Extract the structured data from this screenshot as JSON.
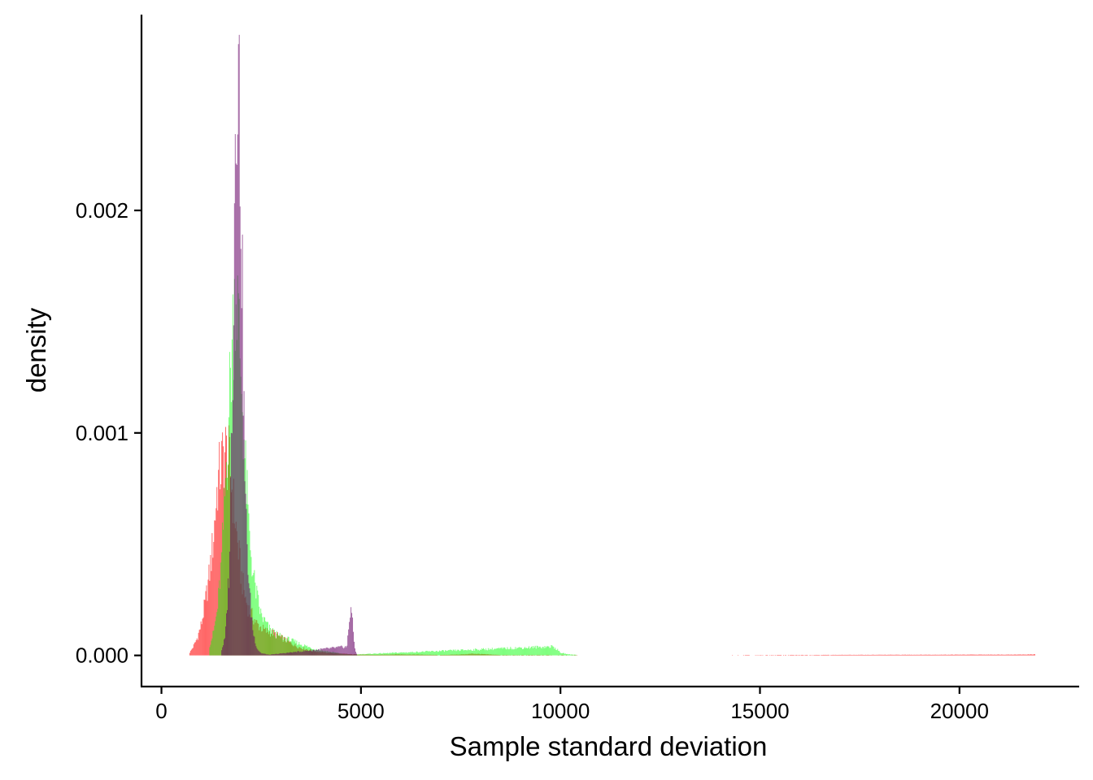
{
  "chart_data": {
    "type": "histogram",
    "title": "",
    "xlabel": "Sample standard deviation",
    "ylabel": "density",
    "xlim": [
      -500,
      23000
    ],
    "ylim": [
      -0.00014,
      0.00288
    ],
    "x_ticks": [
      0,
      5000,
      10000,
      15000,
      20000
    ],
    "x_tick_labels": [
      "0",
      "5000",
      "10000",
      "15000",
      "20000"
    ],
    "y_ticks": [
      0,
      0.001,
      0.002
    ],
    "y_tick_labels": [
      "0.000",
      "0.001",
      "0.002"
    ],
    "grid": false,
    "legend": "none",
    "bin_width": 20,
    "series": [
      {
        "color": "#ff0000",
        "opacity": 0.6,
        "points": [
          [
            700,
            1e-05
          ],
          [
            800,
            4e-05
          ],
          [
            900,
            8e-05
          ],
          [
            1000,
            0.00014
          ],
          [
            1100,
            0.00024
          ],
          [
            1200,
            0.00036
          ],
          [
            1300,
            0.00052
          ],
          [
            1400,
            0.00076
          ],
          [
            1500,
            0.00086
          ],
          [
            1600,
            0.00092
          ],
          [
            1700,
            0.00086
          ],
          [
            1800,
            0.0007
          ],
          [
            1900,
            0.00052
          ],
          [
            2000,
            0.00036
          ],
          [
            2100,
            0.00026
          ],
          [
            2200,
            0.0002
          ],
          [
            2400,
            0.00014
          ],
          [
            2600,
            0.00011
          ],
          [
            2800,
            0.0001
          ],
          [
            3000,
            8e-05
          ],
          [
            3200,
            6e-05
          ],
          [
            3400,
            4e-05
          ],
          [
            3600,
            3e-05
          ],
          [
            3800,
            2e-05
          ],
          [
            4000,
            1.5e-05
          ],
          [
            4300,
            1e-05
          ],
          [
            4700,
            6e-06
          ],
          [
            5000,
            4e-06
          ],
          [
            5400,
            3e-06
          ],
          [
            5900,
            5e-06
          ],
          [
            6400,
            4e-06
          ],
          [
            7000,
            2e-06
          ],
          [
            7600,
            5e-06
          ],
          [
            7800,
            8e-06
          ],
          [
            8500,
            2e-06
          ],
          [
            10000,
            2e-06
          ],
          [
            12000,
            1e-06
          ],
          [
            21600,
            4e-06
          ],
          [
            21900,
            5e-06
          ]
        ]
      },
      {
        "color": "#00ff00",
        "opacity": 0.5,
        "points": [
          [
            1200,
            4e-05
          ],
          [
            1300,
            0.0001
          ],
          [
            1400,
            0.0002
          ],
          [
            1500,
            0.0004
          ],
          [
            1600,
            0.00075
          ],
          [
            1700,
            0.00115
          ],
          [
            1800,
            0.0015
          ],
          [
            1850,
            0.00168
          ],
          [
            1900,
            0.0016
          ],
          [
            2000,
            0.00125
          ],
          [
            2100,
            0.00085
          ],
          [
            2200,
            0.00055
          ],
          [
            2300,
            0.00036
          ],
          [
            2400,
            0.00026
          ],
          [
            2500,
            0.00018
          ],
          [
            2700,
            0.00012
          ],
          [
            2900,
            9e-05
          ],
          [
            3200,
            7e-05
          ],
          [
            3500,
            5e-05
          ],
          [
            3800,
            3e-05
          ],
          [
            4100,
            2e-05
          ],
          [
            4500,
            8e-06
          ],
          [
            4800,
            4e-06
          ],
          [
            9800,
            4e-05
          ],
          [
            9900,
            3e-05
          ],
          [
            10000,
            1.2e-05
          ],
          [
            10200,
            5e-06
          ],
          [
            10400,
            3e-06
          ]
        ]
      },
      {
        "color": "#660066",
        "opacity": 0.6,
        "points": [
          [
            1500,
            2e-05
          ],
          [
            1600,
            8e-05
          ],
          [
            1700,
            0.0004
          ],
          [
            1800,
            0.0015
          ],
          [
            1850,
            0.0024
          ],
          [
            1900,
            0.0028
          ],
          [
            1950,
            0.0025
          ],
          [
            2000,
            0.002
          ],
          [
            2050,
            0.0013
          ],
          [
            2100,
            0.0007
          ],
          [
            2200,
            0.0003
          ],
          [
            2300,
            0.0001
          ],
          [
            2400,
            3e-05
          ],
          [
            2500,
            1e-05
          ],
          [
            2700,
            3e-06
          ],
          [
            4650,
            4e-05
          ],
          [
            4700,
            0.00014
          ],
          [
            4750,
            0.00023
          ],
          [
            4800,
            0.00012
          ],
          [
            4850,
            3e-05
          ],
          [
            4900,
            4e-06
          ]
        ]
      }
    ]
  }
}
